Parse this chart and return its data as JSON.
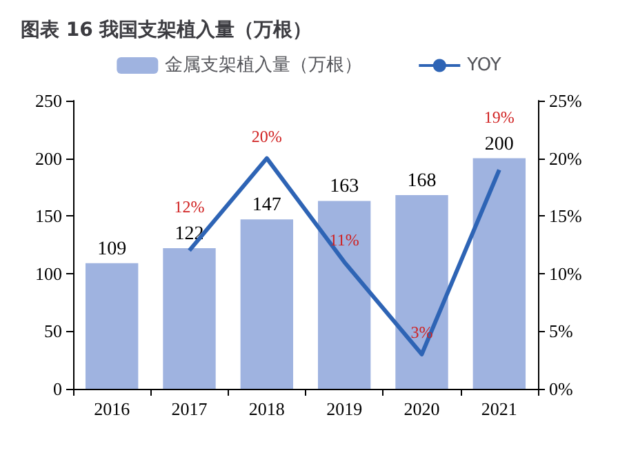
{
  "chart_data": {
    "type": "bar",
    "title": "图表 16 我国支架植入量（万根）",
    "categories": [
      "2016",
      "2017",
      "2018",
      "2019",
      "2020",
      "2021"
    ],
    "series": [
      {
        "name": "金属支架植入量（万根）",
        "color": "#9fb3e0",
        "values": [
          109,
          122,
          147,
          163,
          168,
          200
        ],
        "value_labels": [
          "109",
          "122",
          "147",
          "163",
          "168",
          "200"
        ]
      },
      {
        "name": "YOY",
        "type": "line",
        "axis": "y2",
        "color": "#2e64b5",
        "values": [
          null,
          12,
          20,
          11,
          3,
          19
        ],
        "value_labels": [
          null,
          "12%",
          "20%",
          "11%",
          "3%",
          "19%"
        ]
      }
    ],
    "ylim": [
      0,
      250
    ],
    "yticks": [
      0,
      50,
      100,
      150,
      200,
      250
    ],
    "y2lim": [
      0,
      25
    ],
    "y2ticks": [
      {
        "value": 0,
        "label": "0%"
      },
      {
        "value": 5,
        "label": "5%"
      },
      {
        "value": 10,
        "label": "10%"
      },
      {
        "value": 15,
        "label": "15%"
      },
      {
        "value": 20,
        "label": "20%"
      },
      {
        "value": 25,
        "label": "25%"
      }
    ],
    "grid": false,
    "legend": "top",
    "marker": "none"
  }
}
